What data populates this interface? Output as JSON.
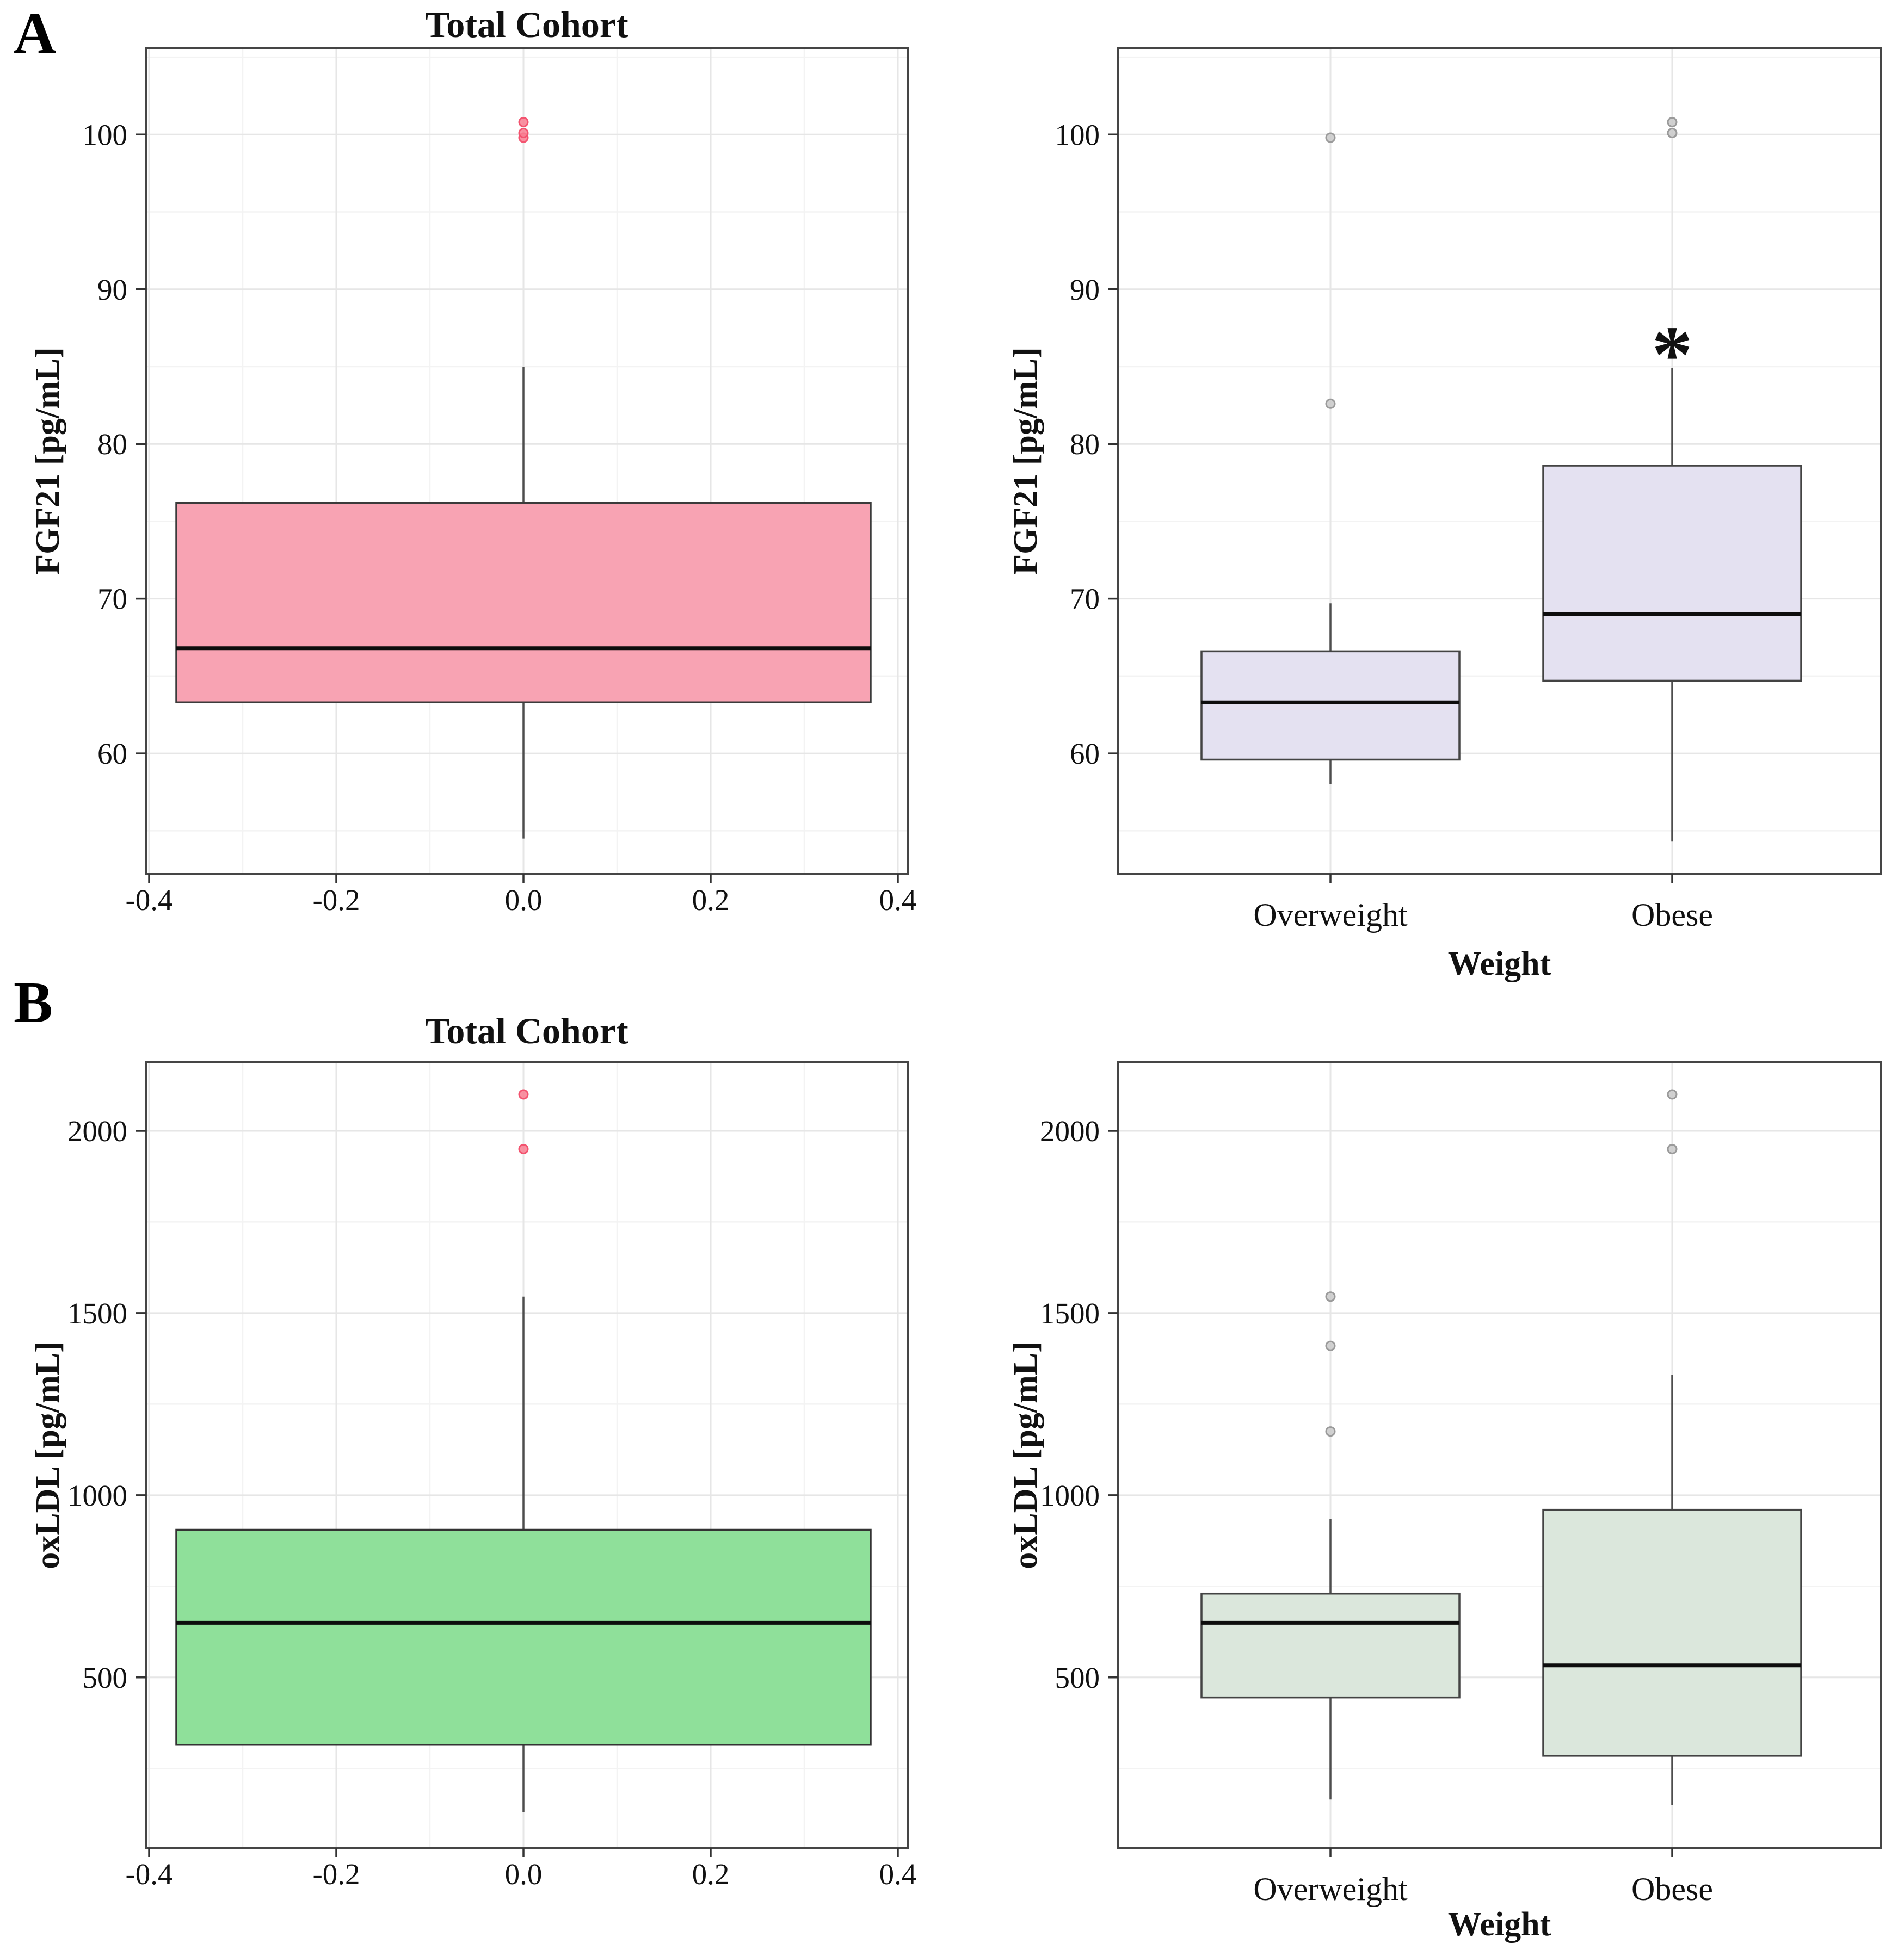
{
  "figure": {
    "panel_labels": {
      "a": "A",
      "b": "B"
    }
  },
  "chart_data": [
    {
      "type": "box",
      "panel": "A",
      "title": "Total Cohort",
      "ylabel": "FGF21 [pg/mL]",
      "xlabel": "",
      "ylim": [
        52.2,
        105.6
      ],
      "ytick_values": [
        60,
        70,
        80,
        90,
        100
      ],
      "ytick_labels": [
        "60",
        "70",
        "80",
        "90",
        "100"
      ],
      "yminor_values": [
        55,
        65,
        75,
        85,
        95,
        105
      ],
      "xtick_labels": [
        "-0.4",
        "-0.2",
        "0.0",
        "0.2",
        "0.4"
      ],
      "grid": true,
      "legend": false,
      "box_fill": "#F8A3B3",
      "box_stroke": "#3B3B3B",
      "outlier_fill": "#F87E92",
      "outlier_stroke": "#F3536F",
      "boxes": [
        {
          "category": "Total Cohort",
          "whisker_low": 54.5,
          "q1": 63.3,
          "median": 66.8,
          "q3": 76.2,
          "whisker_high": 85.0,
          "outliers": [
            99.8,
            100.1,
            100.8
          ]
        }
      ]
    },
    {
      "type": "box",
      "panel": "A",
      "title": "",
      "ylabel": "FGF21 [pg/mL]",
      "xlabel": "Weight",
      "ylim": [
        52.2,
        105.6
      ],
      "ytick_values": [
        60,
        70,
        80,
        90,
        100
      ],
      "ytick_labels": [
        "60",
        "70",
        "80",
        "90",
        "100"
      ],
      "yminor_values": [
        55,
        65,
        75,
        85,
        95,
        105
      ],
      "grid": true,
      "legend": false,
      "box_fill": "#E4E1F1",
      "box_stroke": "#434343",
      "outlier_fill": "#C9C9C9",
      "outlier_stroke": "#9A9A9A",
      "boxes": [
        {
          "category": "Overweight",
          "whisker_low": 58.0,
          "q1": 59.6,
          "median": 63.3,
          "q3": 66.6,
          "whisker_high": 69.7,
          "outliers": [
            82.6,
            99.8
          ]
        },
        {
          "category": "Obese",
          "whisker_low": 54.3,
          "q1": 64.7,
          "median": 69.0,
          "q3": 78.6,
          "whisker_high": 84.9,
          "outliers": [
            100.1,
            100.8
          ]
        }
      ],
      "annotation": {
        "text": "*",
        "value": 87,
        "color": "#F40000",
        "box_index": 1
      }
    },
    {
      "type": "box",
      "panel": "B",
      "title": "Total Cohort",
      "ylabel": "oxLDL [pg/mL]",
      "xlabel": "",
      "ylim": [
        31,
        2188
      ],
      "ytick_values": [
        500,
        1000,
        1500,
        2000
      ],
      "ytick_labels": [
        "500",
        "1000",
        "1500",
        "2000"
      ],
      "yminor_values": [
        250,
        750,
        1250,
        1750
      ],
      "xtick_labels": [
        "-0.4",
        "-0.2",
        "0.0",
        "0.2",
        "0.4"
      ],
      "grid": true,
      "legend": false,
      "box_fill": "#8FE09A",
      "box_stroke": "#333333",
      "outlier_fill": "#F87E92",
      "outlier_stroke": "#F3536F",
      "boxes": [
        {
          "category": "Total Cohort",
          "whisker_low": 130,
          "q1": 315,
          "median": 650,
          "q3": 905,
          "whisker_high": 1545,
          "outliers": [
            1950,
            2100
          ]
        }
      ]
    },
    {
      "type": "box",
      "panel": "B",
      "title": "",
      "ylabel": "oxLDL [pg/mL]",
      "xlabel": "Weight",
      "ylim": [
        31,
        2188
      ],
      "ytick_values": [
        500,
        1000,
        1500,
        2000
      ],
      "ytick_labels": [
        "500",
        "1000",
        "1500",
        "2000"
      ],
      "yminor_values": [
        250,
        750,
        1250,
        1750
      ],
      "grid": true,
      "legend": false,
      "box_fill": "#DBE7DC",
      "box_stroke": "#434343",
      "outlier_fill": "#C9C9C9",
      "outlier_stroke": "#9A9A9A",
      "boxes": [
        {
          "category": "Overweight",
          "whisker_low": 165,
          "q1": 445,
          "median": 650,
          "q3": 730,
          "whisker_high": 935,
          "outliers": [
            1175,
            1410,
            1545
          ]
        },
        {
          "category": "Obese",
          "whisker_low": 150,
          "q1": 285,
          "median": 533,
          "q3": 960,
          "whisker_high": 1330,
          "outliers": [
            1950,
            2100
          ]
        }
      ]
    }
  ]
}
